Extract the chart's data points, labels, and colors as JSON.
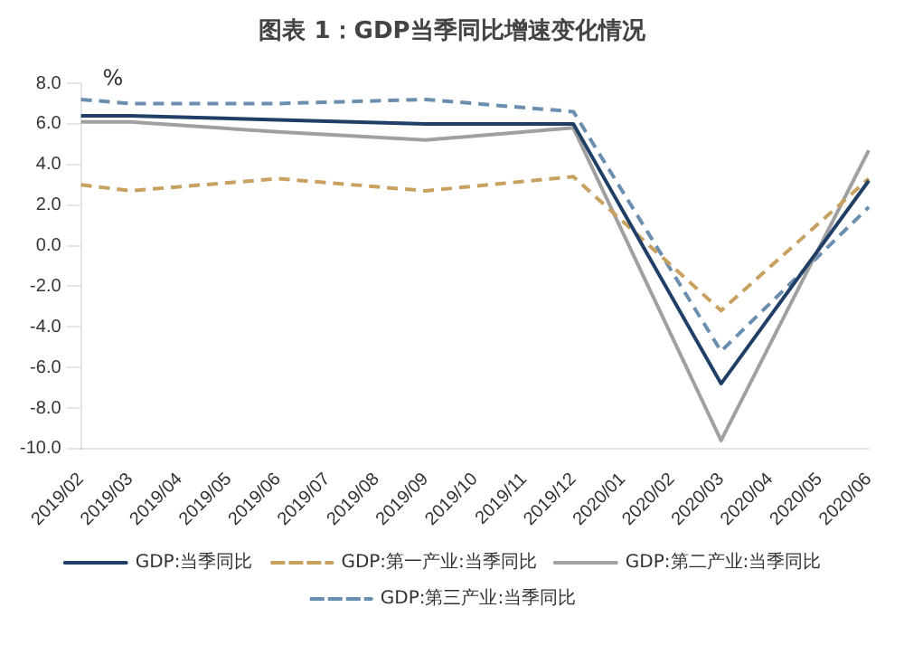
{
  "chart_data": {
    "type": "line",
    "title": "图表 1：GDP当季同比增速变化情况",
    "ylabel": "%",
    "categories": [
      "2019/02",
      "2019/03",
      "2019/04",
      "2019/05",
      "2019/06",
      "2019/07",
      "2019/08",
      "2019/09",
      "2019/10",
      "2019/11",
      "2019/12",
      "2020/01",
      "2020/02",
      "2020/03",
      "2020/04",
      "2020/05",
      "2020/06"
    ],
    "series": [
      {
        "name": "GDP:当季同比",
        "color": "#1f3f66",
        "line_style": "solid",
        "values": [
          6.4,
          6.4,
          null,
          null,
          6.2,
          null,
          null,
          6.0,
          null,
          null,
          6.0,
          null,
          null,
          -6.8,
          null,
          null,
          3.2
        ]
      },
      {
        "name": "GDP:第一产业:当季同比",
        "color": "#c8a060",
        "line_style": "dashed",
        "values": [
          3.0,
          2.7,
          null,
          null,
          3.3,
          null,
          null,
          2.7,
          null,
          null,
          3.4,
          null,
          null,
          -3.2,
          null,
          null,
          3.3
        ]
      },
      {
        "name": "GDP:第二产业:当季同比",
        "color": "#a0a0a0",
        "line_style": "solid",
        "values": [
          6.1,
          6.1,
          null,
          null,
          5.6,
          null,
          null,
          5.2,
          null,
          null,
          5.8,
          null,
          null,
          -9.6,
          null,
          null,
          4.7
        ]
      },
      {
        "name": "GDP:第三产业:当季同比",
        "color": "#6a8eb0",
        "line_style": "dashed",
        "values": [
          7.2,
          7.0,
          null,
          null,
          7.0,
          null,
          null,
          7.2,
          null,
          null,
          6.6,
          null,
          null,
          -5.2,
          null,
          null,
          1.9
        ]
      }
    ],
    "ylim": [
      -10,
      8
    ],
    "yticks": [
      {
        "value": -10,
        "label": "-10.0"
      },
      {
        "value": -8,
        "label": "-8.0"
      },
      {
        "value": -6,
        "label": "-6.0"
      },
      {
        "value": -4,
        "label": "-4.0"
      },
      {
        "value": -2,
        "label": "-2.0"
      },
      {
        "value": 0,
        "label": "0.0"
      },
      {
        "value": 2,
        "label": "2.0"
      },
      {
        "value": 4,
        "label": "4.0"
      },
      {
        "value": 6,
        "label": "6.0"
      },
      {
        "value": 8,
        "label": "8.0"
      }
    ],
    "grid": false,
    "legend": "bottom",
    "marker": "none"
  }
}
